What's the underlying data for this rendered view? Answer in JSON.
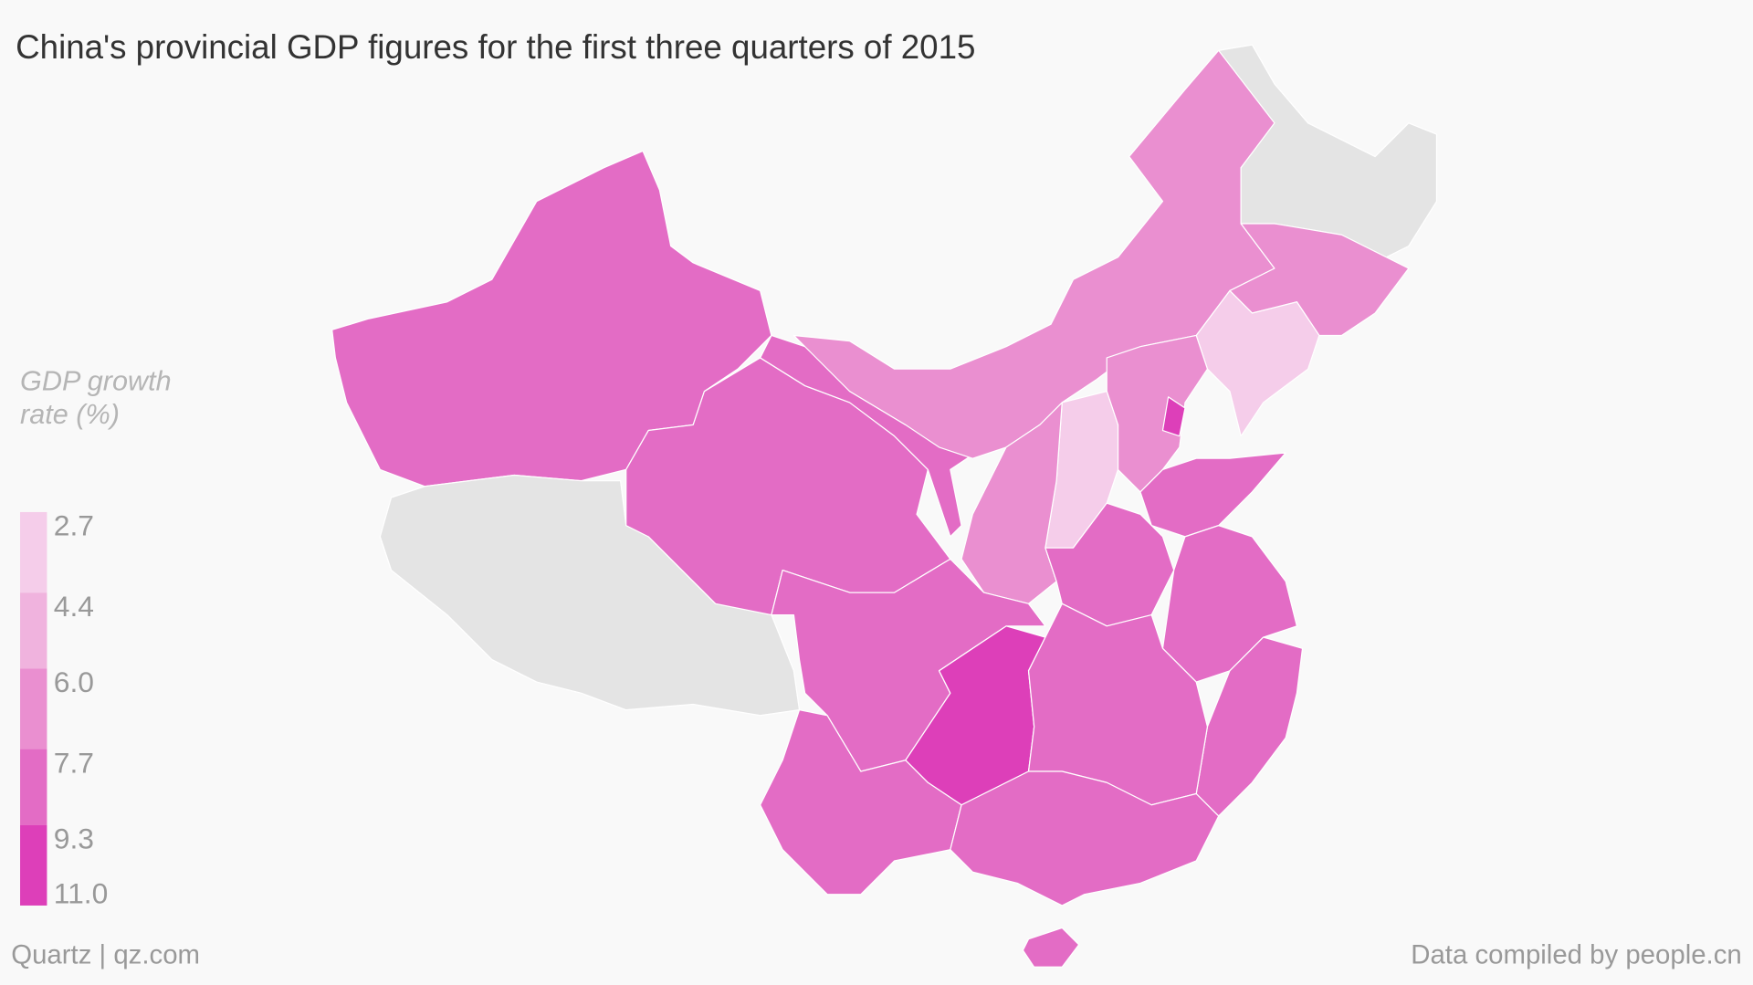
{
  "title": "China's provincial GDP figures for the first three quarters of 2015",
  "legend": {
    "title": "GDP growth rate (%)",
    "breaks": [
      2.7,
      4.4,
      {
        "value": 6,
        "label": "6.0"
      },
      7.7,
      9.3,
      {
        "value": 11,
        "label": "11.0"
      }
    ],
    "colors": [
      "#f5cdea",
      "#f0b3de",
      "#ea8fd0",
      "#e36cc5",
      "#dd3fb9"
    ]
  },
  "footer": {
    "credit": "Quartz | qz.com",
    "source": "Data compiled by people.cn"
  }
}
